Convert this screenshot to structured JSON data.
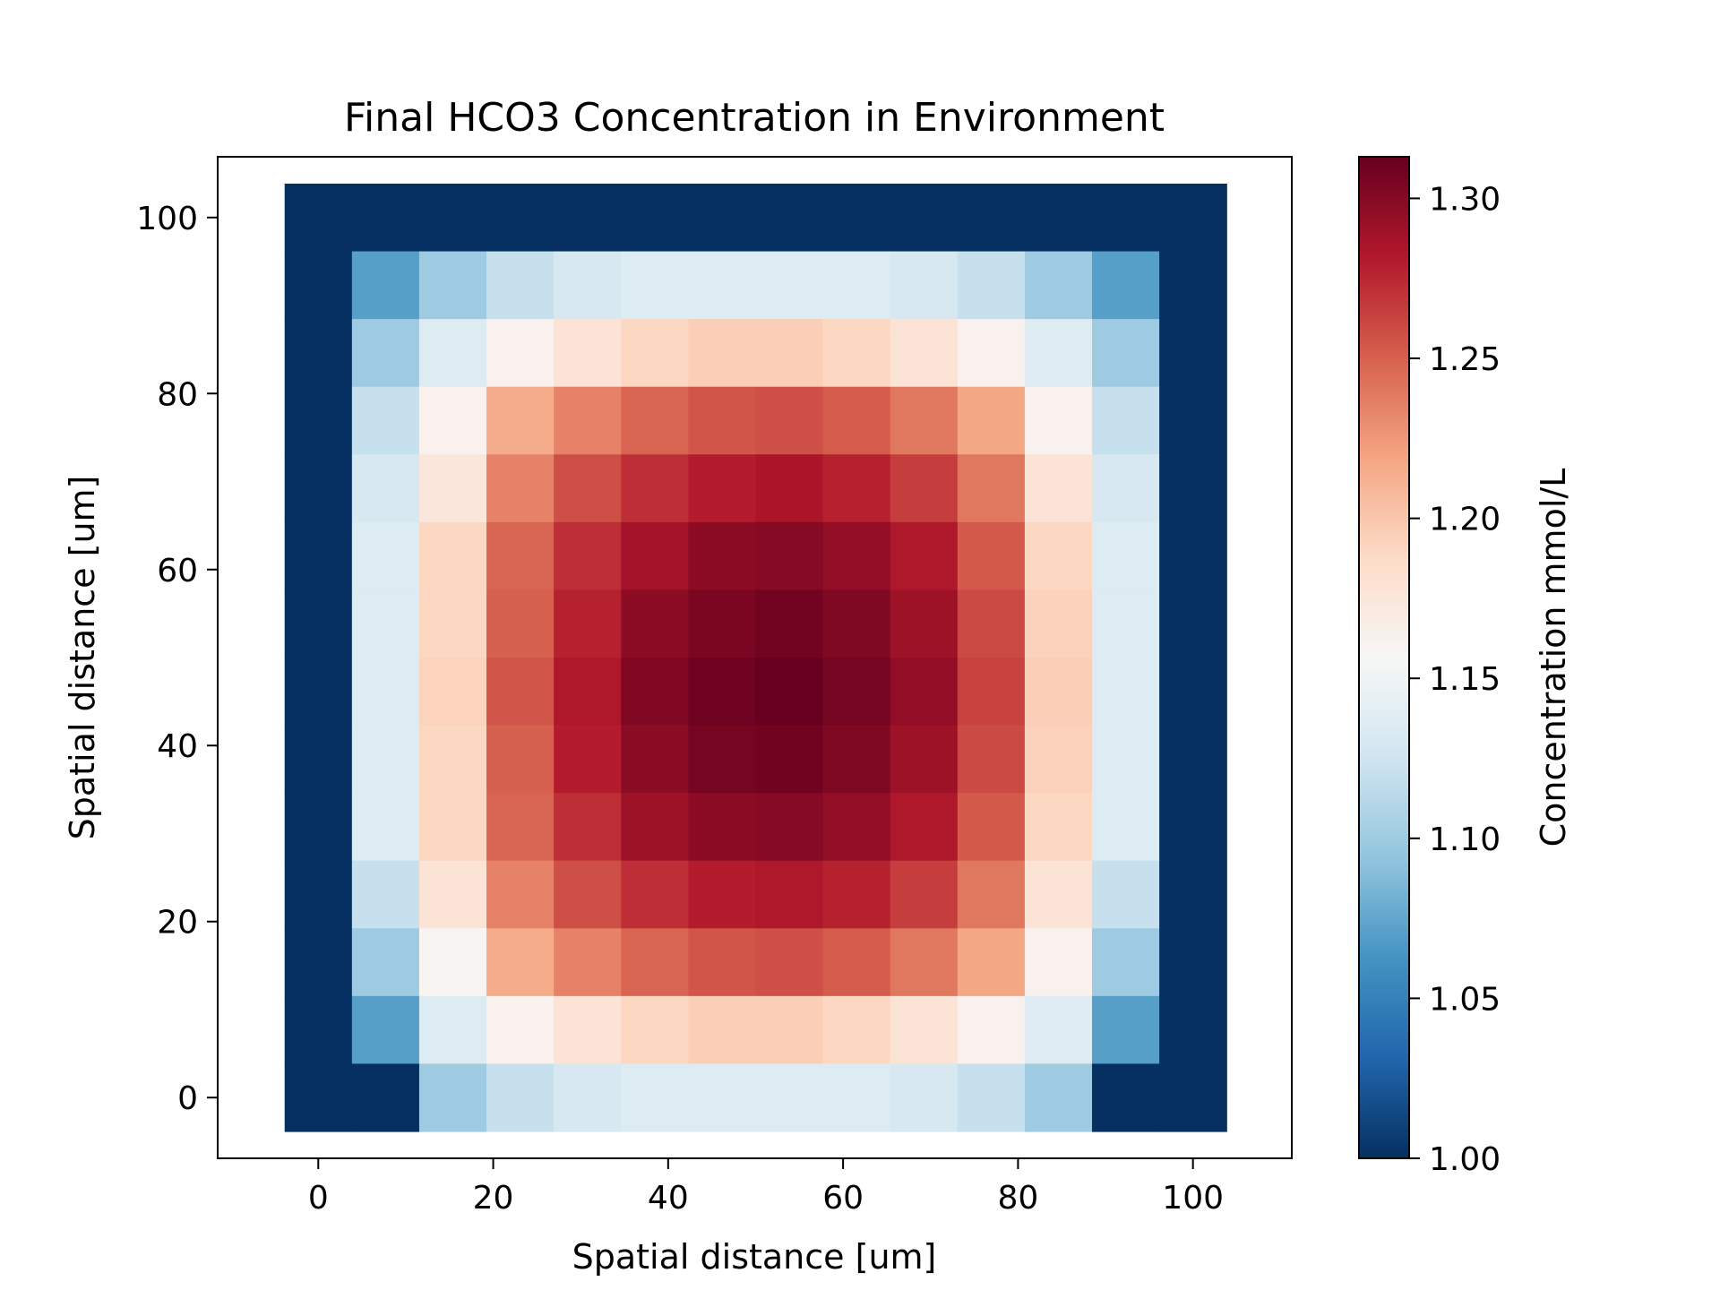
{
  "chart_data": {
    "type": "heatmap",
    "title": "Final HCO3 Concentration in Environment",
    "xlabel": "Spatial distance [um]",
    "ylabel": "Spatial distance [um]",
    "colorbar_label": "Concentration mmol/L",
    "colormap": "RdBu_r",
    "xlim": [
      -11.5,
      111.3
    ],
    "ylim": [
      -6.9,
      106.9
    ],
    "cell_size": 7.6923,
    "x_ticks": [
      0,
      20,
      40,
      60,
      80,
      100
    ],
    "x_tick_labels": [
      "0",
      "20",
      "40",
      "60",
      "80",
      "100"
    ],
    "y_ticks": [
      0,
      20,
      40,
      60,
      80,
      100
    ],
    "y_tick_labels": [
      "0",
      "20",
      "40",
      "60",
      "80",
      "100"
    ],
    "colorbar_range": [
      1.0,
      1.313
    ],
    "colorbar_ticks": [
      1.0,
      1.05,
      1.1,
      1.15,
      1.2,
      1.25,
      1.3
    ],
    "colorbar_tick_labels": [
      "1.00",
      "1.05",
      "1.10",
      "1.15",
      "1.20",
      "1.25",
      "1.30"
    ],
    "grid": false,
    "rows_top_to_bottom": [
      [
        1.0,
        1.0,
        1.0,
        1.0,
        1.0,
        1.0,
        1.0,
        1.0,
        1.0,
        1.0,
        1.0,
        1.0,
        1.0,
        1.0
      ],
      [
        1.0,
        1.07,
        1.1,
        1.12,
        1.13,
        1.135,
        1.135,
        1.135,
        1.135,
        1.13,
        1.12,
        1.1,
        1.07,
        1.0
      ],
      [
        1.0,
        1.1,
        1.135,
        1.163,
        1.178,
        1.19,
        1.195,
        1.195,
        1.19,
        1.178,
        1.163,
        1.135,
        1.1,
        1.0
      ],
      [
        1.0,
        1.12,
        1.163,
        1.215,
        1.235,
        1.248,
        1.255,
        1.258,
        1.252,
        1.24,
        1.218,
        1.163,
        1.12,
        1.0
      ],
      [
        1.0,
        1.13,
        1.175,
        1.235,
        1.258,
        1.272,
        1.28,
        1.285,
        1.278,
        1.265,
        1.24,
        1.178,
        1.13,
        1.0
      ],
      [
        1.0,
        1.135,
        1.19,
        1.248,
        1.272,
        1.288,
        1.297,
        1.3,
        1.295,
        1.283,
        1.253,
        1.19,
        1.135,
        1.0
      ],
      [
        1.0,
        1.135,
        1.19,
        1.25,
        1.278,
        1.297,
        1.305,
        1.308,
        1.303,
        1.29,
        1.26,
        1.193,
        1.135,
        1.0
      ],
      [
        1.0,
        1.135,
        1.192,
        1.255,
        1.283,
        1.302,
        1.31,
        1.313,
        1.307,
        1.295,
        1.263,
        1.195,
        1.135,
        1.0
      ],
      [
        1.0,
        1.135,
        1.19,
        1.25,
        1.28,
        1.298,
        1.307,
        1.309,
        1.303,
        1.29,
        1.26,
        1.193,
        1.135,
        1.0
      ],
      [
        1.0,
        1.135,
        1.19,
        1.248,
        1.272,
        1.29,
        1.297,
        1.3,
        1.295,
        1.283,
        1.253,
        1.19,
        1.135,
        1.0
      ],
      [
        1.0,
        1.12,
        1.178,
        1.235,
        1.258,
        1.272,
        1.28,
        1.283,
        1.278,
        1.265,
        1.24,
        1.178,
        1.12,
        1.0
      ],
      [
        1.0,
        1.1,
        1.16,
        1.215,
        1.235,
        1.248,
        1.255,
        1.258,
        1.252,
        1.24,
        1.218,
        1.163,
        1.1,
        1.0
      ],
      [
        1.0,
        1.07,
        1.135,
        1.163,
        1.178,
        1.19,
        1.195,
        1.195,
        1.19,
        1.178,
        1.163,
        1.135,
        1.07,
        1.0
      ],
      [
        1.0,
        1.0,
        1.1,
        1.12,
        1.13,
        1.135,
        1.135,
        1.135,
        1.135,
        1.13,
        1.12,
        1.1,
        1.0,
        1.0
      ]
    ]
  }
}
